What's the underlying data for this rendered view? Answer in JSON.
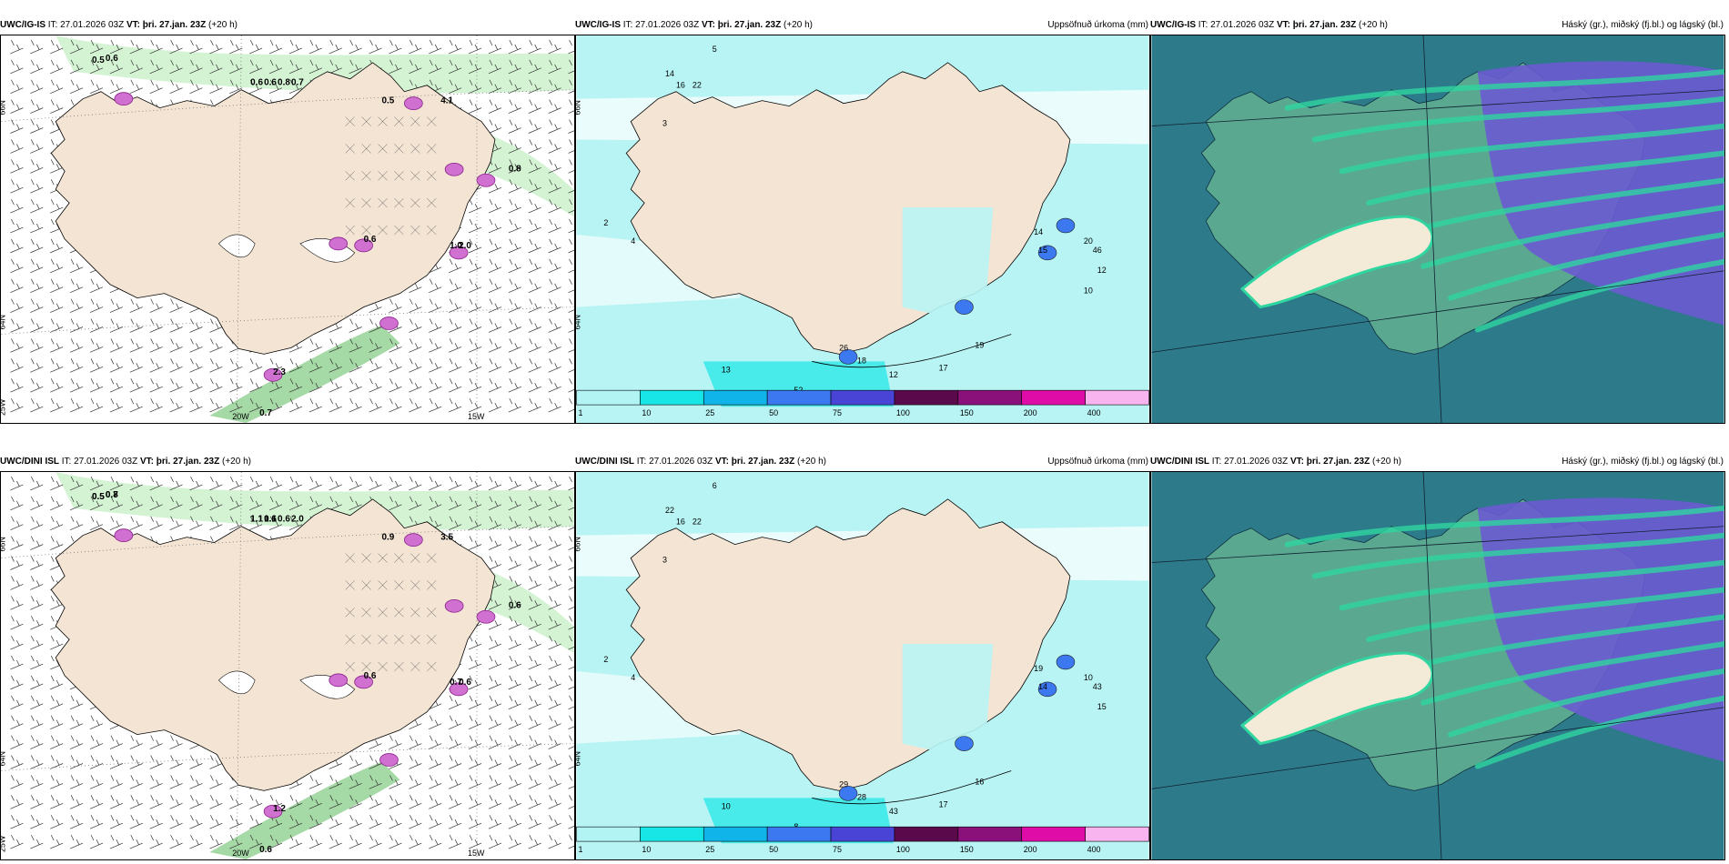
{
  "panels": [
    {
      "id": "p1",
      "model": "UWC/IG-IS",
      "issue": "IT: 27.01.2026 03Z",
      "valid_prefix": "VT:",
      "valid": "þri. 27.jan. 23Z",
      "lead": "(+20 h)",
      "right_label": "",
      "axes": {
        "lat_top": "66N",
        "lat_mid": "64N",
        "lat_bot": "25W",
        "lon_left": "20W",
        "lon_right": "15W"
      },
      "values": [
        "0.5",
        "0.6",
        "0.6",
        "0.6",
        "0.8",
        "0.7",
        "0.5",
        "2.3",
        "4.1",
        "0.8",
        "0.6",
        "1.0",
        "2.0",
        "0.7"
      ]
    },
    {
      "id": "p2",
      "model": "UWC/IG-IS",
      "issue": "IT: 27.01.2026 03Z",
      "valid_prefix": "VT:",
      "valid": "þri. 27.jan. 23Z",
      "lead": "(+20 h)",
      "right_label": "Uppsöfnuð úrkoma (mm)",
      "axes": {
        "lat_top": "66N",
        "lat_mid": "64N",
        "lat_bot": "",
        "lon_left": "",
        "lon_right": ""
      },
      "values": [
        "14",
        "16",
        "22",
        "3",
        "5",
        "2",
        "4",
        "26",
        "18",
        "12",
        "17",
        "19",
        "13",
        "52",
        "50",
        "14",
        "15",
        "20",
        "46",
        "12",
        "10"
      ]
    },
    {
      "id": "p3",
      "model": "UWC/IG-IS",
      "issue": "IT: 27.01.2026 03Z",
      "valid_prefix": "VT:",
      "valid": "þri. 27.jan. 23Z",
      "lead": "(+20 h)",
      "right_label": "Háský (gr.), miðský (fj.bl.) og lágský (bl.)",
      "axes": {},
      "values": []
    },
    {
      "id": "p4",
      "model": "UWC/DINI ISL",
      "issue": "IT: 27.01.2026 03Z",
      "valid_prefix": "VT:",
      "valid": "þri. 27.jan. 23Z",
      "lead": "(+20 h)",
      "right_label": "",
      "axes": {
        "lat_top": "66N",
        "lat_mid": "64N",
        "lat_bot": "25W",
        "lon_left": "20W",
        "lon_right": "15W"
      },
      "values": [
        "0.5",
        "0.8",
        "1.1",
        "0.6",
        "0.6",
        "2.0",
        "0.9",
        "1.2",
        "3.5",
        "0.6",
        "0.6",
        "0.7",
        "0.6",
        "0.6",
        "0.5",
        "0.7",
        "1.1",
        "1.1"
      ]
    },
    {
      "id": "p5",
      "model": "UWC/DINI ISL",
      "issue": "IT: 27.01.2026 03Z",
      "valid_prefix": "VT:",
      "valid": "þri. 27.jan. 23Z",
      "lead": "(+20 h)",
      "right_label": "Uppsöfnuð úrkoma (mm)",
      "axes": {
        "lat_top": "66N",
        "lat_mid": "64N",
        "lat_bot": "",
        "lon_left": "",
        "lon_right": ""
      },
      "values": [
        "22",
        "16",
        "22",
        "3",
        "6",
        "2",
        "4",
        "29",
        "28",
        "43",
        "17",
        "16",
        "10",
        "8",
        "22",
        "19",
        "14",
        "10",
        "43",
        "15"
      ]
    },
    {
      "id": "p6",
      "model": "UWC/DINI ISL",
      "issue": "IT: 27.01.2026 03Z",
      "valid_prefix": "VT:",
      "valid": "þri. 27.jan. 23Z",
      "lead": "(+20 h)",
      "right_label": "Háský (gr.), miðský (fj.bl.) og lágský (bl.)",
      "axes": {},
      "values": []
    }
  ],
  "colorbar": {
    "ticks": [
      "1",
      "10",
      "25",
      "50",
      "75",
      "100",
      "150",
      "200",
      "400"
    ],
    "colors": [
      "#b2f4f4",
      "#18e6e6",
      "#10b4e8",
      "#3c78f0",
      "#4a44d6",
      "#5a0a4a",
      "#8a107a",
      "#e00ca8",
      "#f8b4ee"
    ]
  },
  "colors": {
    "land": "#f3e4d4",
    "sea_light": "#b8f4f4",
    "precip_green": "#c8f0c8",
    "cloud_teal": "#2d7a8a",
    "cloud_green": "#5aa890",
    "cloud_violet": "#6a5ad0"
  }
}
